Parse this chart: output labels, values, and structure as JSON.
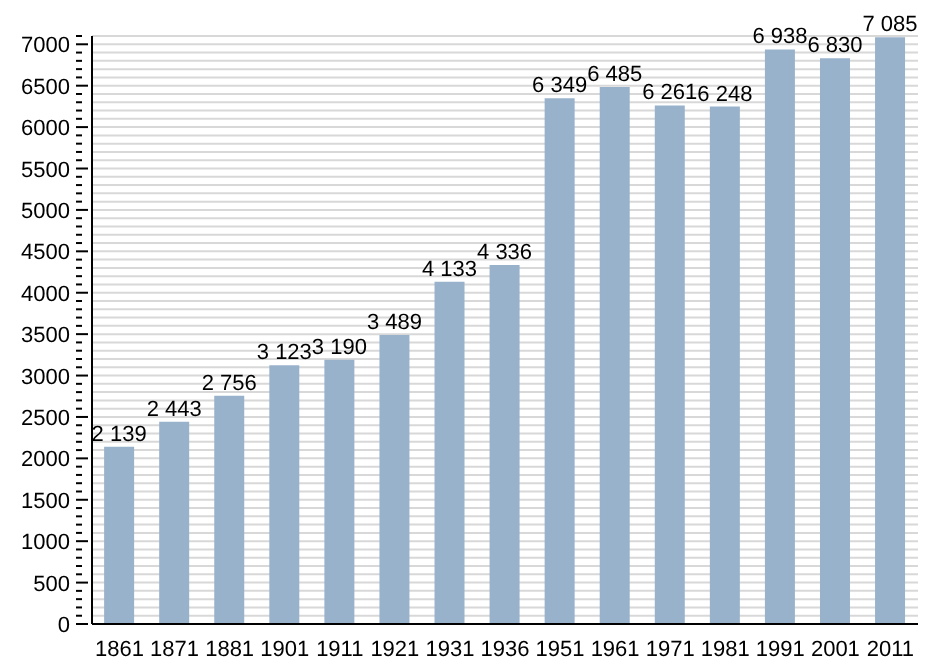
{
  "chart_data": {
    "type": "bar",
    "categories": [
      "1861",
      "1871",
      "1881",
      "1901",
      "1911",
      "1921",
      "1931",
      "1936",
      "1951",
      "1961",
      "1971",
      "1981",
      "1991",
      "2001",
      "2011"
    ],
    "values": [
      2139,
      2443,
      2756,
      3123,
      3190,
      3489,
      4133,
      4336,
      6349,
      6485,
      6261,
      6248,
      6938,
      6830,
      7085
    ],
    "value_labels": [
      "2 139",
      "2 443",
      "2 756",
      "3 123",
      "3 190",
      "3 489",
      "4 133",
      "4 336",
      "6 349",
      "6 485",
      "6 261",
      "6 248",
      "6 938",
      "6 830",
      "7 085"
    ],
    "color": "#98b2cc",
    "ylim": [
      0,
      7100
    ],
    "yticks": [
      0,
      {
        "value": 100,
        "label": null
      },
      {
        "value": 200,
        "label": null
      },
      {
        "value": 300,
        "label": null
      },
      {
        "value": 400,
        "label": null
      },
      500,
      {
        "value": 600,
        "label": null
      },
      {
        "value": 700,
        "label": null
      },
      {
        "value": 800,
        "label": null
      },
      {
        "value": 900,
        "label": null
      },
      1000,
      {
        "value": 1100,
        "label": null
      },
      {
        "value": 1200,
        "label": null
      },
      {
        "value": 1300,
        "label": null
      },
      {
        "value": 1400,
        "label": null
      },
      1500,
      {
        "value": 1600,
        "label": null
      },
      {
        "value": 1700,
        "label": null
      },
      {
        "value": 1800,
        "label": null
      },
      {
        "value": 1900,
        "label": null
      },
      2000,
      {
        "value": 2100,
        "label": null
      },
      {
        "value": 2200,
        "label": null
      },
      {
        "value": 2300,
        "label": null
      },
      {
        "value": 2400,
        "label": null
      },
      2500,
      {
        "value": 2600,
        "label": null
      },
      {
        "value": 2700,
        "label": null
      },
      {
        "value": 2800,
        "label": null
      },
      {
        "value": 2900,
        "label": null
      },
      3000,
      {
        "value": 3100,
        "label": null
      },
      {
        "value": 3200,
        "label": null
      },
      {
        "value": 3300,
        "label": null
      },
      {
        "value": 3400,
        "label": null
      },
      3500,
      {
        "value": 3600,
        "label": null
      },
      {
        "value": 3700,
        "label": null
      },
      {
        "value": 3800,
        "label": null
      },
      {
        "value": 3900,
        "label": null
      },
      4000,
      {
        "value": 4100,
        "label": null
      },
      {
        "value": 4200,
        "label": null
      },
      {
        "value": 4300,
        "label": null
      },
      {
        "value": 4400,
        "label": null
      },
      4500,
      {
        "value": 4600,
        "label": null
      },
      {
        "value": 4700,
        "label": null
      },
      {
        "value": 4800,
        "label": null
      },
      {
        "value": 4900,
        "label": null
      },
      5000,
      {
        "value": 5100,
        "label": null
      },
      {
        "value": 5200,
        "label": null
      },
      {
        "value": 5300,
        "label": null
      },
      {
        "value": 5400,
        "label": null
      },
      5500,
      {
        "value": 5600,
        "label": null
      },
      {
        "value": 5700,
        "label": null
      },
      {
        "value": 5800,
        "label": null
      },
      {
        "value": 5900,
        "label": null
      },
      6000,
      {
        "value": 6100,
        "label": null
      },
      {
        "value": 6200,
        "label": null
      },
      {
        "value": 6300,
        "label": null
      },
      {
        "value": 6400,
        "label": null
      },
      6500,
      {
        "value": 6600,
        "label": null
      },
      {
        "value": 6700,
        "label": null
      },
      {
        "value": 6800,
        "label": null
      },
      {
        "value": 6900,
        "label": null
      },
      7000,
      {
        "value": 7100,
        "label": null
      }
    ],
    "grid": "y"
  }
}
